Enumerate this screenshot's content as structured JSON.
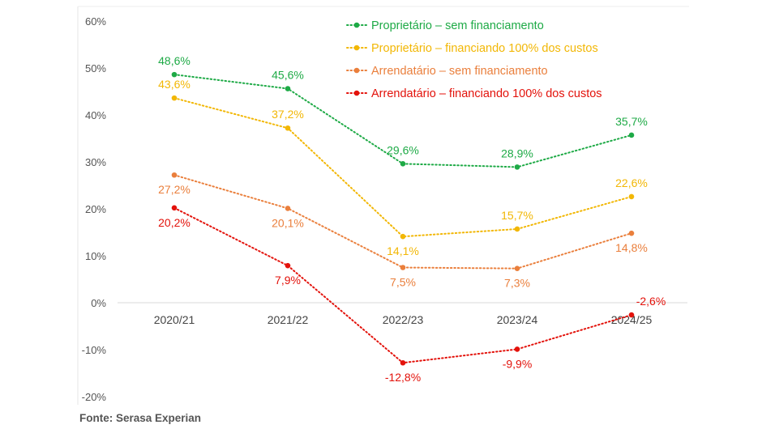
{
  "source": "Fonte: Serasa Experian",
  "chart_data": {
    "type": "line",
    "title": "",
    "xlabel": "",
    "ylabel": "",
    "categories": [
      "2020/21",
      "2021/22",
      "2022/23",
      "2023/24",
      "2024/25"
    ],
    "ylim": [
      -20,
      60
    ],
    "yticks": [
      60,
      50,
      40,
      30,
      20,
      10,
      0,
      -10,
      -20
    ],
    "ytick_labels": [
      "60%",
      "50%",
      "40%",
      "30%",
      "20%",
      "10%",
      "0%",
      "-10%",
      "-20%"
    ],
    "grid": false,
    "legend_position": "top-right",
    "series": [
      {
        "name": "Proprietário – sem financiamento",
        "color": "#1eaa46",
        "values": [
          48.6,
          45.6,
          29.6,
          28.9,
          35.7
        ],
        "labels": [
          "48,6%",
          "45,6%",
          "29,6%",
          "28,9%",
          "35,7%"
        ]
      },
      {
        "name": "Proprietário – financiando 100% dos custos",
        "color": "#f2b705",
        "values": [
          43.6,
          37.2,
          14.1,
          15.7,
          22.6
        ],
        "labels": [
          "43,6%",
          "37,2%",
          "14,1%",
          "15,7%",
          "22,6%"
        ]
      },
      {
        "name": "Arrendatário – sem financiamento",
        "color": "#ea7f3c",
        "values": [
          27.2,
          20.1,
          7.5,
          7.3,
          14.8
        ],
        "labels": [
          "27,2%",
          "20,1%",
          "7,5%",
          "7,3%",
          "14,8%"
        ]
      },
      {
        "name": "Arrendatário – financiando 100% dos custos",
        "color": "#e3120b",
        "values": [
          20.2,
          7.9,
          -12.8,
          -9.9,
          -2.6
        ],
        "labels": [
          "20,2%",
          "7,9%",
          "-12,8%",
          "-9,9%",
          "-2,6%"
        ]
      }
    ]
  }
}
